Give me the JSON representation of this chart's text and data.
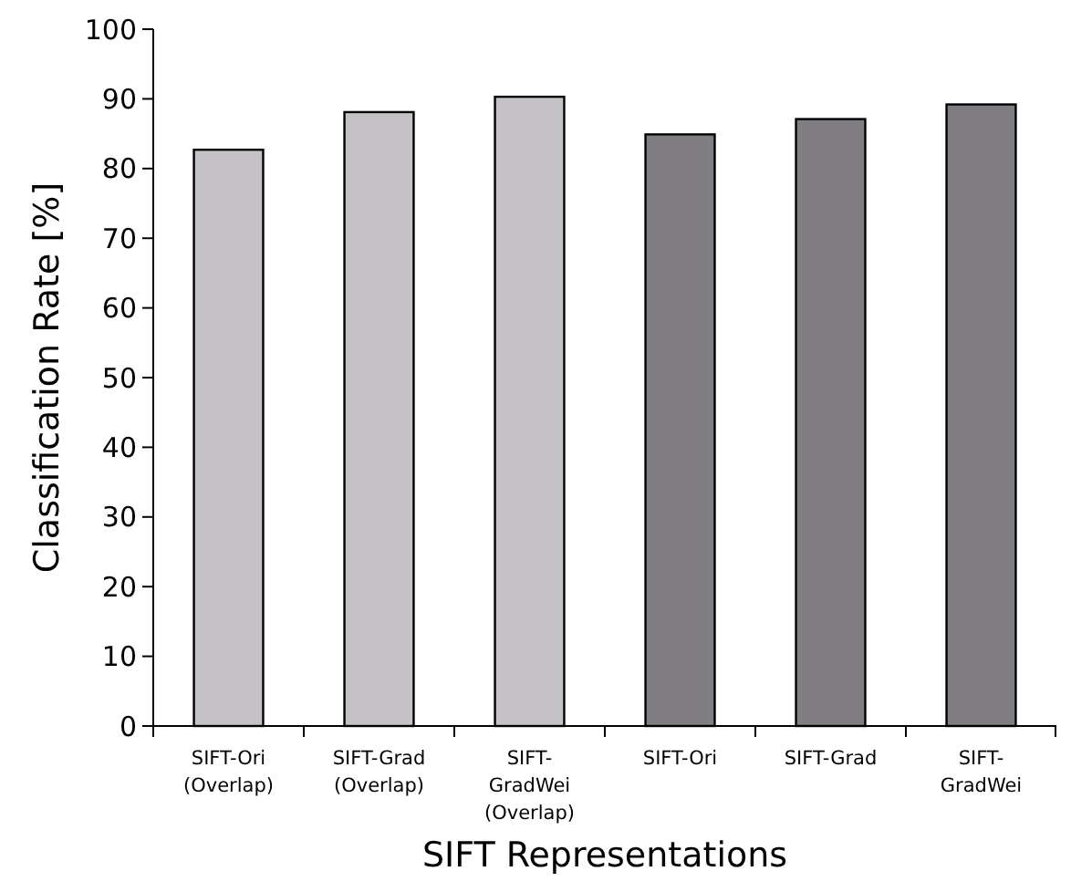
{
  "chart_data": {
    "type": "bar",
    "xlabel": "SIFT Representations",
    "ylabel": "Classification Rate [%]",
    "categories": [
      "SIFT-Ori\n(Overlap)",
      "SIFT-Grad\n(Overlap)",
      "SIFT-\nGradWei\n(Overlap)",
      "SIFT-Ori",
      "SIFT-Grad",
      "SIFT-\nGradWei"
    ],
    "values": [
      82.7,
      88.1,
      90.3,
      84.9,
      87.1,
      89.2
    ],
    "colors": [
      "#c4c2c6",
      "#c4c2c6",
      "#c4c2c6",
      "#807e82",
      "#807e82",
      "#807e82"
    ],
    "ylim": [
      0,
      100
    ],
    "yticks": [
      0,
      10,
      20,
      30,
      40,
      50,
      60,
      70,
      80,
      90,
      100
    ],
    "grid": false
  }
}
